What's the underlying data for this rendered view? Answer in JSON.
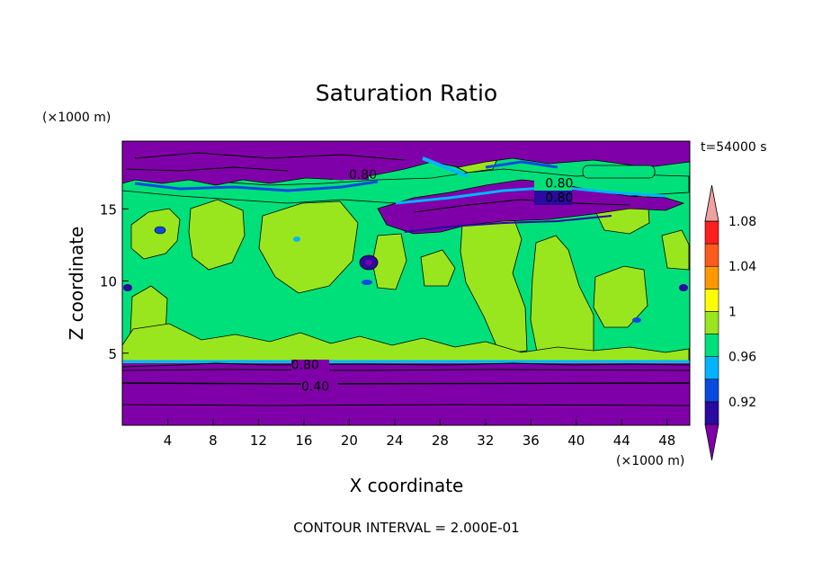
{
  "chart_data": {
    "type": "heatmap",
    "title": "Saturation Ratio",
    "xlabel": "X coordinate",
    "ylabel": "Z coordinate",
    "x_unit": "(×1000 m)",
    "y_unit": "(×1000 m)",
    "time_label": "t=54000 s",
    "footer": "CONTOUR INTERVAL = 2.000E-01",
    "xlim": [
      0,
      50
    ],
    "ylim": [
      0,
      19.7
    ],
    "x_ticks": [
      4,
      8,
      12,
      16,
      20,
      24,
      28,
      32,
      36,
      40,
      44,
      48
    ],
    "y_ticks": [
      5,
      10,
      15
    ],
    "contour_labels": [
      {
        "text": "0.80",
        "x": 21.2,
        "y": 17.4
      },
      {
        "text": "0.80",
        "x": 38.5,
        "y": 16.8
      },
      {
        "text": "0.80",
        "x": 38.5,
        "y": 15.8
      },
      {
        "text": "0.80",
        "x": 16.1,
        "y": 4.2
      },
      {
        "text": "0.40",
        "x": 17.0,
        "y": 2.7
      }
    ],
    "colorbar": {
      "labels": [
        "1.08",
        "1.04",
        "1",
        "0.96",
        "0.92"
      ],
      "colors": [
        "#7f00a8",
        "#2a0aa0",
        "#0a4ae0",
        "#00b4ff",
        "#00e07a",
        "#9ae61e",
        "#ffff00",
        "#ff9800",
        "#ff5a1e",
        "#ff1e1e",
        "#f0a0a0"
      ]
    },
    "regions_color": {
      "dry": "#7f00a8",
      "deep_blue": "#2a0aa0",
      "blue": "#0a4ae0",
      "cyan": "#00b4ff",
      "green": "#00e07a",
      "lime": "#9ae61e"
    }
  }
}
